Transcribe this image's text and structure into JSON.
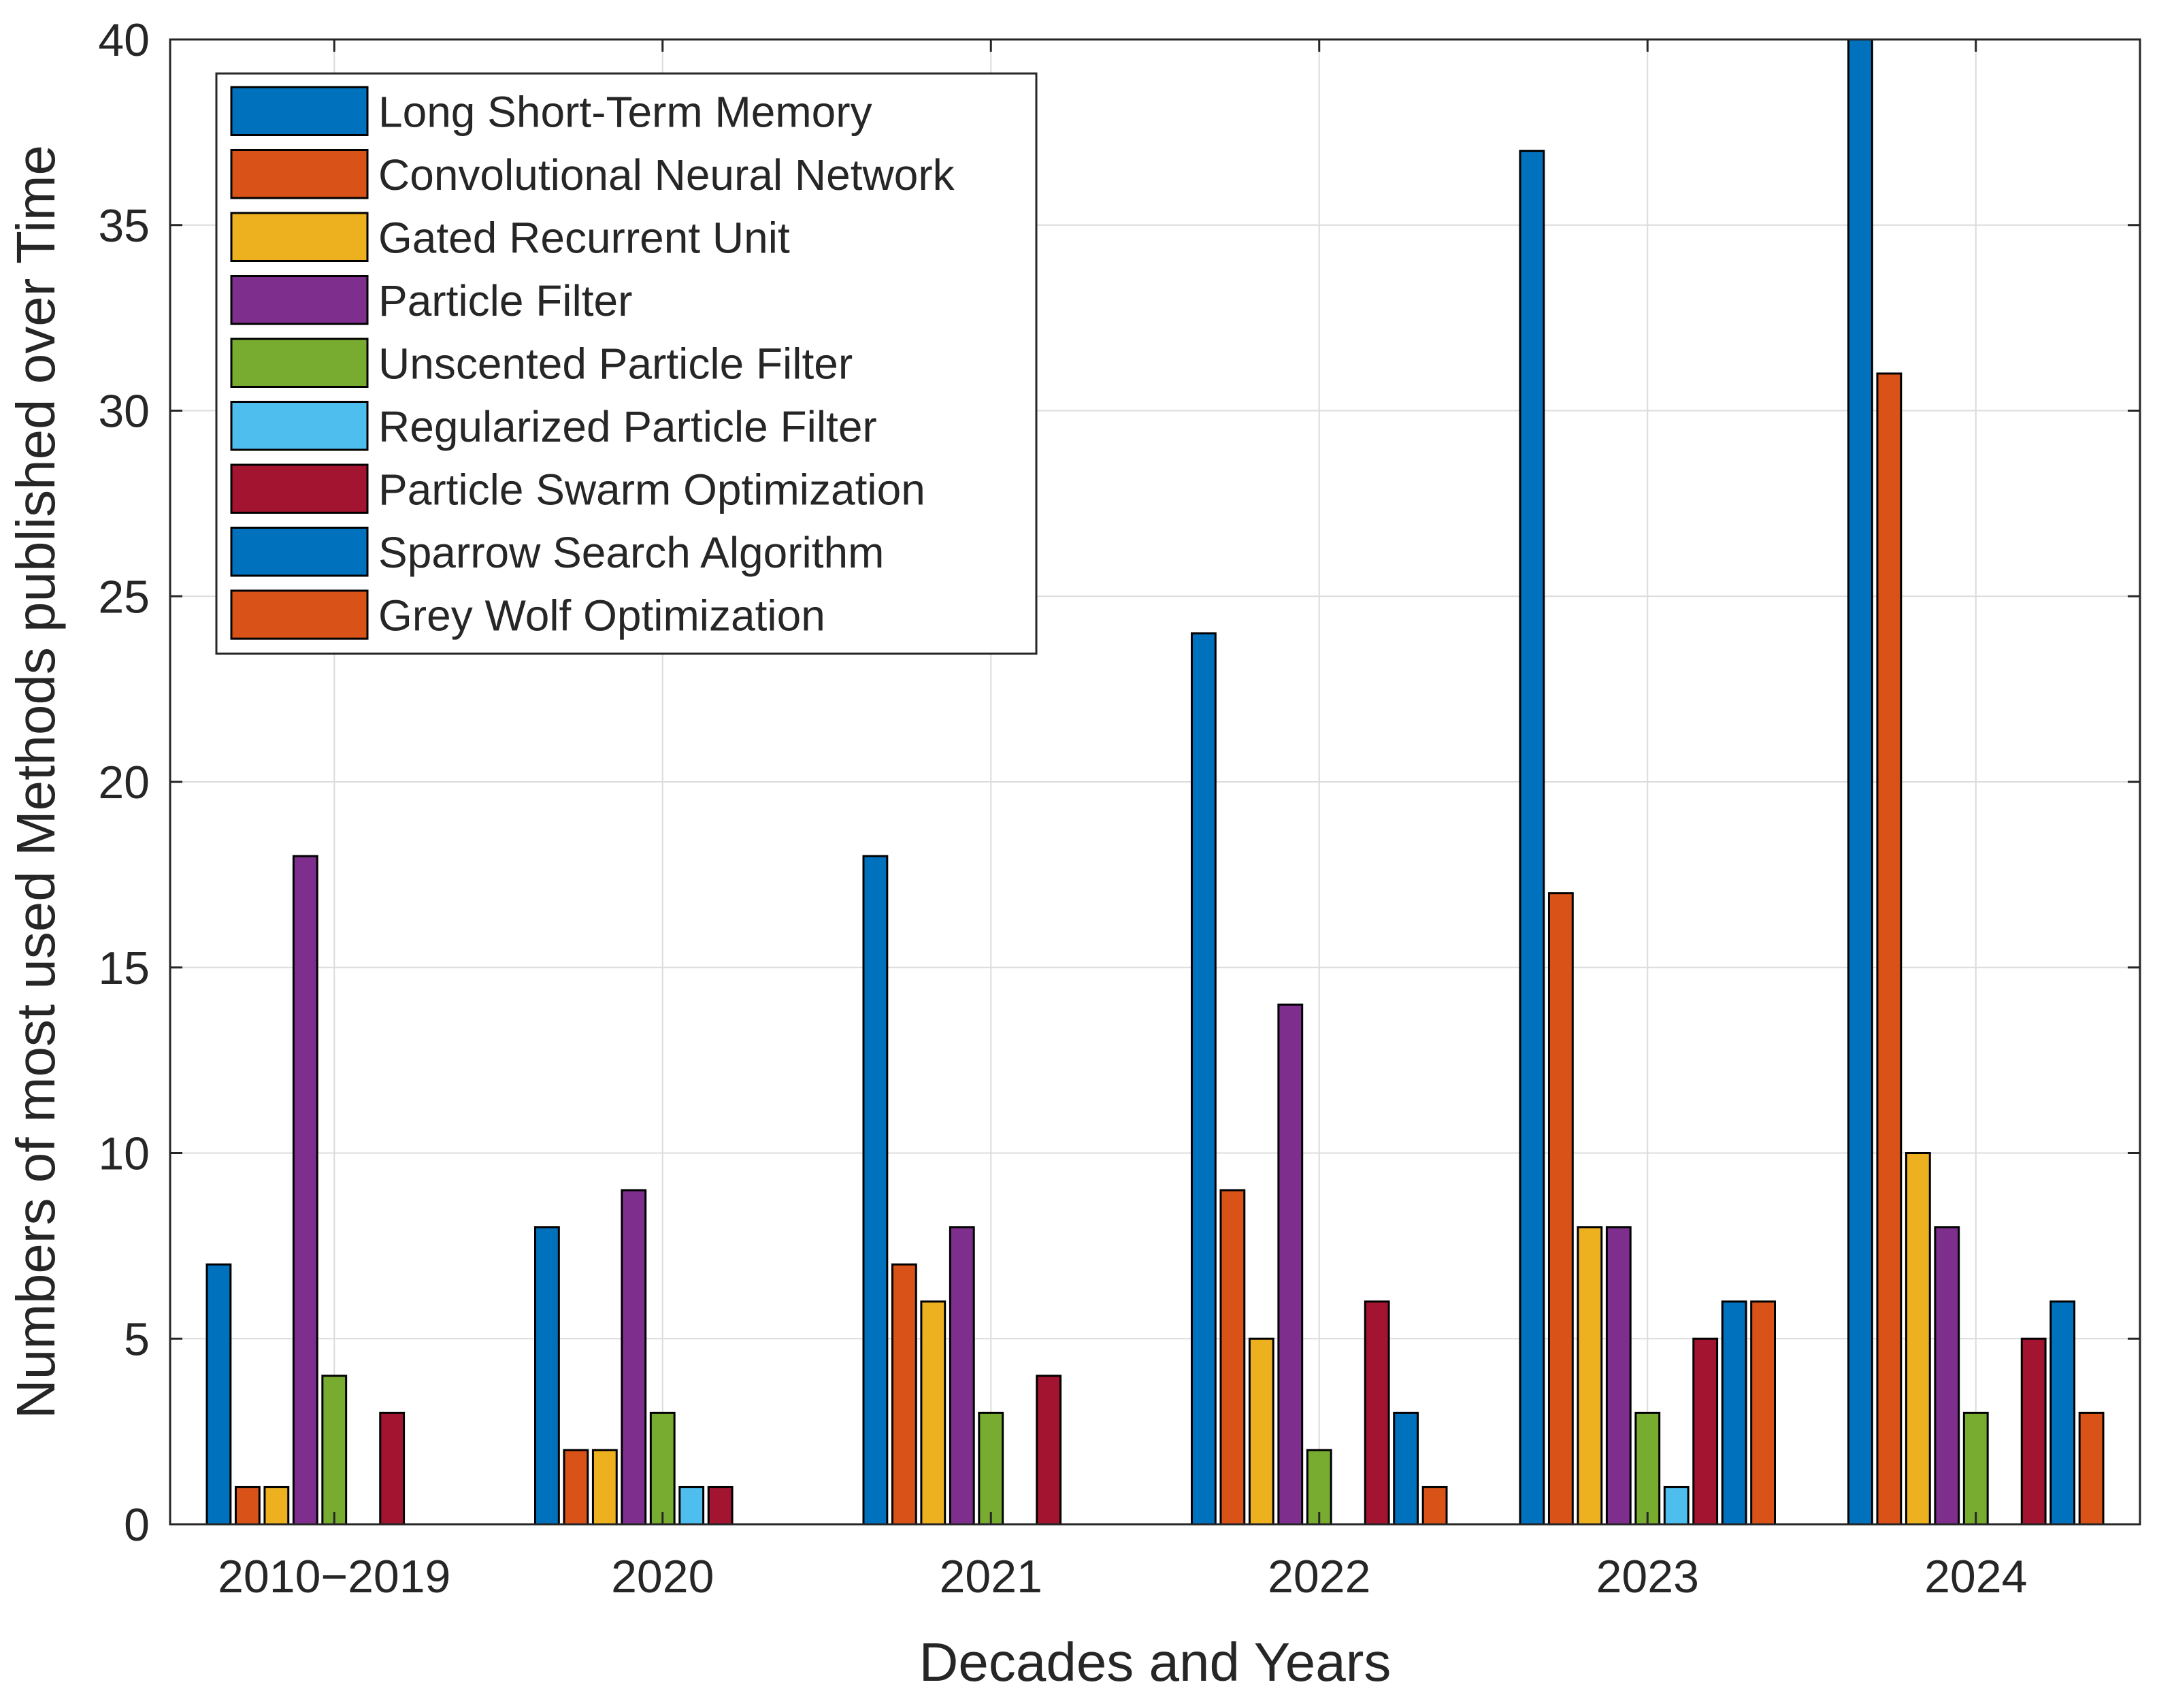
{
  "chart_data": {
    "type": "bar",
    "title": "",
    "xlabel": "Decades and Years",
    "ylabel": "Numbers of most used Methods published over Time",
    "categories": [
      "2010−2019",
      "2020",
      "2021",
      "2022",
      "2023",
      "2024"
    ],
    "ylim": [
      0,
      40
    ],
    "yticks": [
      0,
      5,
      10,
      15,
      20,
      25,
      30,
      35,
      40
    ],
    "grid": true,
    "legend_position": "top-left",
    "series": [
      {
        "name": "Long Short-Term Memory",
        "color": "#0072BD",
        "values": [
          7,
          8,
          18,
          24,
          37,
          40
        ]
      },
      {
        "name": "Convolutional Neural Network",
        "color": "#D95319",
        "values": [
          1,
          2,
          7,
          9,
          17,
          31
        ]
      },
      {
        "name": "Gated Recurrent Unit",
        "color": "#EDB120",
        "values": [
          1,
          2,
          6,
          5,
          8,
          10
        ]
      },
      {
        "name": "Particle Filter",
        "color": "#7E2F8E",
        "values": [
          18,
          9,
          8,
          14,
          8,
          8
        ]
      },
      {
        "name": "Unscented Particle Filter",
        "color": "#77AC30",
        "values": [
          4,
          3,
          3,
          2,
          3,
          3
        ]
      },
      {
        "name": "Regularized Particle Filter",
        "color": "#4DBEEE",
        "values": [
          0,
          1,
          0,
          0,
          1,
          0
        ]
      },
      {
        "name": "Particle Swarm Optimization",
        "color": "#A2142F",
        "values": [
          3,
          1,
          4,
          6,
          5,
          5
        ]
      },
      {
        "name": "Sparrow Search Algorithm",
        "color": "#0072BD",
        "values": [
          0,
          0,
          0,
          3,
          6,
          6
        ]
      },
      {
        "name": "Grey Wolf Optimization",
        "color": "#D95319",
        "values": [
          0,
          0,
          0,
          1,
          6,
          3
        ]
      }
    ]
  }
}
